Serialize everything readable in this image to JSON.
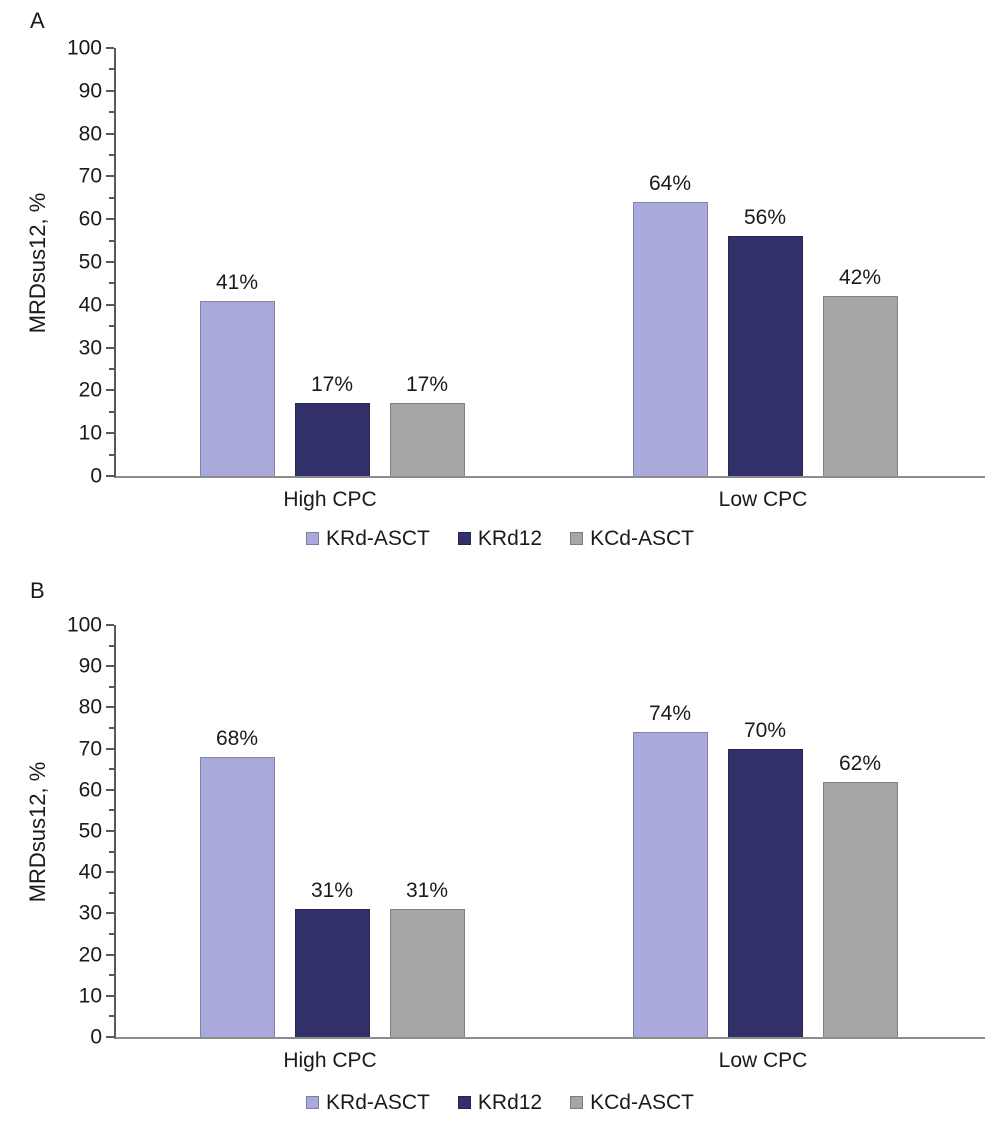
{
  "chart_data": [
    {
      "type": "bar",
      "panel_label": "A",
      "title": "",
      "xlabel": "",
      "ylabel": "MRDsus12, %",
      "ylim": [
        0,
        100
      ],
      "yticks": [
        0,
        10,
        20,
        30,
        40,
        50,
        60,
        70,
        80,
        90,
        100
      ],
      "minor_tick_step": 5,
      "grid": false,
      "legend_position": "bottom",
      "categories": [
        "High CPC",
        "Low CPC"
      ],
      "series": [
        {
          "name": "KRd-ASCT",
          "color": "#A9A9DC",
          "values": [
            41,
            64
          ],
          "labels": [
            "41%",
            "64%"
          ]
        },
        {
          "name": "KRd12",
          "color": "#32306A",
          "values": [
            17,
            56
          ],
          "labels": [
            "17%",
            "56%"
          ]
        },
        {
          "name": "KCd-ASCT",
          "color": "#A6A6A6",
          "values": [
            17,
            42
          ],
          "labels": [
            "17%",
            "42%"
          ]
        }
      ]
    },
    {
      "type": "bar",
      "panel_label": "B",
      "title": "",
      "xlabel": "",
      "ylabel": "MRDsus12, %",
      "ylim": [
        0,
        100
      ],
      "yticks": [
        0,
        10,
        20,
        30,
        40,
        50,
        60,
        70,
        80,
        90,
        100
      ],
      "minor_tick_step": 5,
      "grid": false,
      "legend_position": "bottom",
      "categories": [
        "High CPC",
        "Low CPC"
      ],
      "series": [
        {
          "name": "KRd-ASCT",
          "color": "#A9A9DC",
          "values": [
            68,
            74
          ],
          "labels": [
            "68%",
            "74%"
          ]
        },
        {
          "name": "KRd12",
          "color": "#32306A",
          "values": [
            31,
            70
          ],
          "labels": [
            "31%",
            "70%"
          ]
        },
        {
          "name": "KCd-ASCT",
          "color": "#A6A6A6",
          "values": [
            31,
            62
          ],
          "labels": [
            "31%",
            "62%"
          ]
        }
      ]
    }
  ],
  "axis_colors": {
    "axis_line": "#595959",
    "baseline": "#8c8c8c",
    "text": "#1a1a1a"
  }
}
